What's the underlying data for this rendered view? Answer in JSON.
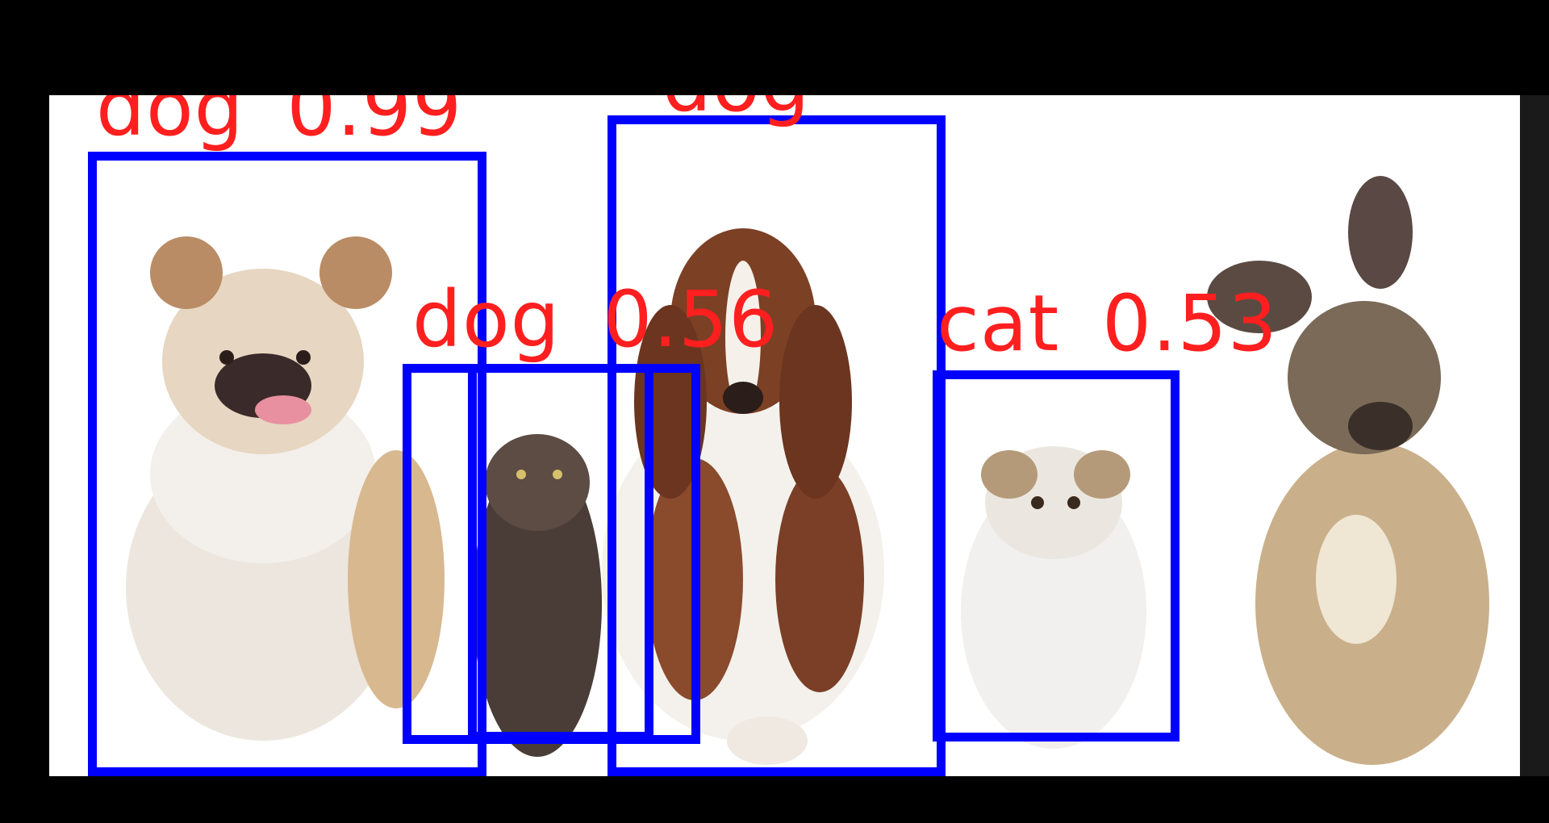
{
  "detections": [
    {
      "id": "d1",
      "label": "dog",
      "score": "0.99"
    },
    {
      "id": "d2",
      "label": "dog",
      "score": "0.56"
    },
    {
      "id": "d3",
      "label": "dog",
      "score": ""
    },
    {
      "id": "d4",
      "label": "cat",
      "score": "0.53"
    },
    {
      "id": "d5",
      "label": "",
      "score": ""
    }
  ],
  "colors": {
    "box": "#0000ff",
    "label": "#ff1f1f",
    "background": "#000000",
    "panel": "#ffffff"
  }
}
